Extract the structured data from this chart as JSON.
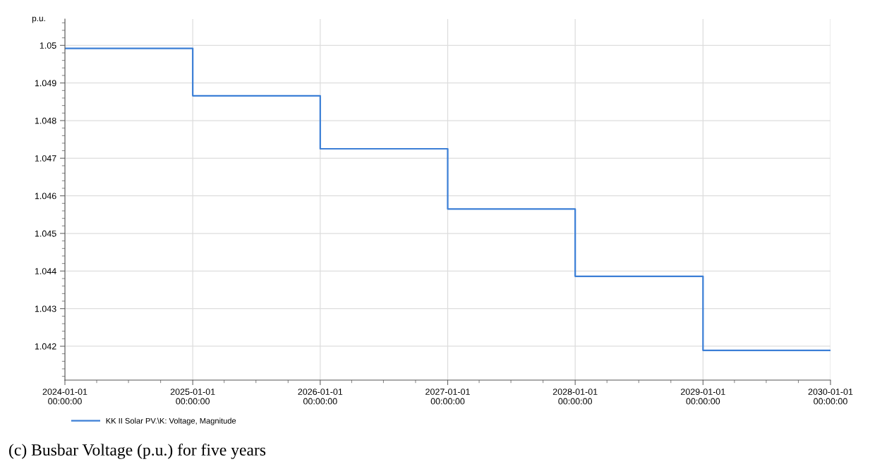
{
  "chart_data": {
    "type": "step",
    "ylabel": "p.u.",
    "x": [
      "2024-01-01",
      "2025-01-01",
      "2026-01-01",
      "2027-01-01",
      "2028-01-01",
      "2029-01-01",
      "2030-01-01"
    ],
    "series": [
      {
        "name": "KK II Solar PV.\\K: Voltage, Magnitude",
        "color": "#3c7fd6",
        "values": [
          1.04992,
          1.04866,
          1.04725,
          1.04565,
          1.04386,
          1.04189,
          1.04189
        ]
      }
    ],
    "xlim": [
      "2024-01-01",
      "2030-01-01"
    ],
    "xticks": [
      {
        "value": "2024-01-01",
        "label": "2024-01-01\n00:00:00"
      },
      {
        "value": "2025-01-01",
        "label": "2025-01-01\n00:00:00"
      },
      {
        "value": "2026-01-01",
        "label": "2026-01-01\n00:00:00"
      },
      {
        "value": "2027-01-01",
        "label": "2027-01-01\n00:00:00"
      },
      {
        "value": "2028-01-01",
        "label": "2028-01-01\n00:00:00"
      },
      {
        "value": "2029-01-01",
        "label": "2029-01-01\n00:00:00"
      },
      {
        "value": "2030-01-01",
        "label": "2030-01-01\n00:00:00"
      }
    ],
    "ylim": [
      1.0411,
      1.0507
    ],
    "yticks": [
      1.042,
      1.043,
      1.044,
      1.045,
      1.046,
      1.047,
      1.048,
      1.049,
      1.05
    ],
    "grid": true,
    "legend": "bottom left",
    "marker": "none",
    "line_style": "solid",
    "annotations": [
      "(c) Busbar Voltage (p.u.) for five years"
    ]
  }
}
